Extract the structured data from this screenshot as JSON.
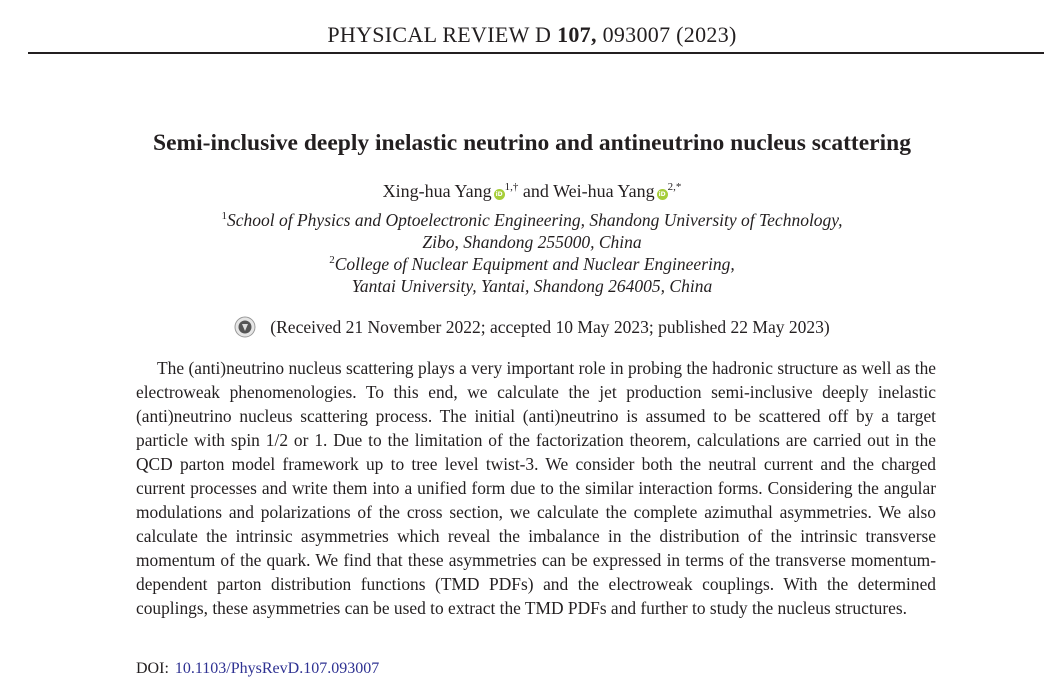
{
  "header": {
    "journal": "PHYSICAL REVIEW D",
    "volume": "107,",
    "citation": "093007 (2023)"
  },
  "title": "Semi-inclusive deeply inelastic neutrino and antineutrino nucleus scattering",
  "authors": [
    {
      "name": "Xing-hua Yang",
      "marks": "1,†"
    },
    {
      "name": "Wei-hua Yang",
      "marks": "2,*"
    }
  ],
  "author_separator": "and",
  "affiliations": [
    {
      "marker": "1",
      "lines": [
        "School of Physics and Optoelectronic Engineering, Shandong University of Technology,",
        "Zibo, Shandong 255000, China"
      ]
    },
    {
      "marker": "2",
      "lines": [
        "College of Nuclear Equipment and Nuclear Engineering,",
        "Yantai University, Yantai, Shandong 264005, China"
      ]
    }
  ],
  "received": "(Received 21 November 2022; accepted 10 May 2023; published 22 May 2023)",
  "abstract": "The (anti)neutrino nucleus scattering plays a very important role in probing the hadronic structure as well as the electroweak phenomenologies. To this end, we calculate the jet production semi-inclusive deeply inelastic (anti)neutrino nucleus scattering process. The initial (anti)neutrino is assumed to be scattered off by a target particle with spin 1/2 or 1. Due to the limitation of the factorization theorem, calculations are carried out in the QCD parton model framework up to tree level twist-3. We consider both the neutral current and the charged current processes and write them into a unified form due to the similar interaction forms. Considering the angular modulations and polarizations of the cross section, we calculate the complete azimuthal asymmetries. We also calculate the intrinsic asymmetries which reveal the imbalance in the distribution of the intrinsic transverse momentum of the quark. We find that these asymmetries can be expressed in terms of the transverse momentum-dependent parton distribution functions (TMD PDFs) and the electroweak couplings. With the determined couplings, these asymmetries can be used to extract the TMD PDFs and further to study the nucleus structures.",
  "doi": {
    "label": "DOI:",
    "value": "10.1103/PhysRevD.107.093007"
  }
}
